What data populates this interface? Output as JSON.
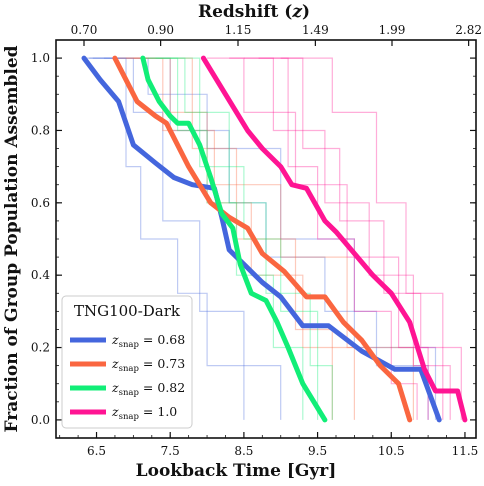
{
  "chart_data": {
    "type": "line",
    "xlabel": "Lookback Time [Gyr]",
    "ylabel": "Fraction of Group Population Assembled",
    "top_axis_label": "Redshift (z)",
    "xlim": [
      5.95,
      11.65
    ],
    "ylim": [
      -0.05,
      1.05
    ],
    "x_ticks": [
      "6.5",
      "7.5",
      "8.5",
      "9.5",
      "10.5",
      "11.5"
    ],
    "y_ticks": [
      "0.0",
      "0.2",
      "0.4",
      "0.6",
      "0.8",
      "1.0"
    ],
    "top_ticks": [
      {
        "label": "0.70",
        "at": 6.33
      },
      {
        "label": "0.90",
        "at": 7.37
      },
      {
        "label": "1.15",
        "at": 8.42
      },
      {
        "label": "1.49",
        "at": 9.47
      },
      {
        "label": "1.99",
        "at": 10.51
      },
      {
        "label": "2.82",
        "at": 11.55
      }
    ],
    "legend": {
      "title": "TNG100-Dark",
      "position": "lower-left",
      "entries": [
        {
          "prefix": "z",
          "sub": "snap",
          "value": " = 0.68"
        },
        {
          "prefix": "z",
          "sub": "snap",
          "value": " = 0.73"
        },
        {
          "prefix": "z",
          "sub": "snap",
          "value": " = 0.82"
        },
        {
          "prefix": "z",
          "sub": "snap",
          "value": " = 1.0"
        }
      ]
    },
    "series": [
      {
        "color": "#4466dd",
        "x": [
          6.33,
          6.55,
          6.8,
          7.0,
          7.3,
          7.55,
          7.8,
          8.1,
          8.2,
          8.3,
          8.55,
          8.75,
          9.0,
          9.3,
          9.65,
          10.1,
          10.55,
          10.9,
          11.15
        ],
        "y": [
          1.0,
          0.94,
          0.88,
          0.76,
          0.71,
          0.67,
          0.65,
          0.64,
          0.56,
          0.47,
          0.42,
          0.38,
          0.34,
          0.26,
          0.26,
          0.19,
          0.14,
          0.14,
          0.0
        ],
        "members": [
          {
            "x": [
              6.35,
              7.0,
              7.4,
              7.9,
              8.5
            ],
            "y": [
              1.0,
              0.85,
              0.55,
              0.3,
              0.0
            ]
          },
          {
            "x": [
              6.45,
              6.9,
              7.1,
              7.6,
              8.0,
              9.0
            ],
            "y": [
              1.0,
              0.7,
              0.5,
              0.35,
              0.15,
              0.0
            ]
          },
          {
            "x": [
              6.6,
              7.5,
              8.3,
              8.8,
              9.6,
              10.3,
              11.0
            ],
            "y": [
              1.0,
              0.8,
              0.6,
              0.45,
              0.3,
              0.15,
              0.0
            ]
          },
          {
            "x": [
              6.4,
              7.2,
              8.0,
              9.0,
              10.0,
              11.1
            ],
            "y": [
              1.0,
              0.9,
              0.75,
              0.5,
              0.2,
              0.0
            ]
          }
        ]
      },
      {
        "color": "#fa6640",
        "x": [
          6.75,
          7.05,
          7.3,
          7.45,
          7.75,
          8.05,
          8.3,
          8.55,
          8.75,
          9.05,
          9.35,
          9.6,
          9.85,
          10.1,
          10.35,
          10.6,
          10.75
        ],
        "y": [
          1.0,
          0.88,
          0.84,
          0.82,
          0.7,
          0.6,
          0.56,
          0.53,
          0.46,
          0.41,
          0.34,
          0.34,
          0.27,
          0.22,
          0.15,
          0.1,
          0.0
        ],
        "members": [
          {
            "x": [
              6.8,
              7.5,
              8.0,
              8.6,
              9.3,
              10.0
            ],
            "y": [
              1.0,
              0.85,
              0.6,
              0.4,
              0.2,
              0.0
            ]
          },
          {
            "x": [
              6.9,
              7.4,
              8.1,
              9.0,
              9.9,
              10.8
            ],
            "y": [
              1.0,
              0.8,
              0.65,
              0.45,
              0.2,
              0.0
            ]
          },
          {
            "x": [
              7.0,
              7.8,
              8.4,
              9.2,
              9.7
            ],
            "y": [
              1.0,
              0.75,
              0.5,
              0.25,
              0.0
            ]
          }
        ]
      },
      {
        "color": "#11ee77",
        "x": [
          7.13,
          7.2,
          7.35,
          7.5,
          7.6,
          7.75,
          7.9,
          8.05,
          8.2,
          8.35,
          8.45,
          8.6,
          8.8,
          8.95,
          9.1,
          9.3,
          9.6
        ],
        "y": [
          1.0,
          0.94,
          0.88,
          0.84,
          0.82,
          0.82,
          0.76,
          0.67,
          0.57,
          0.53,
          0.43,
          0.35,
          0.33,
          0.27,
          0.2,
          0.1,
          0.0
        ],
        "members": [
          {
            "x": [
              7.15,
              7.6,
              8.0,
              8.4,
              8.9,
              9.3
            ],
            "y": [
              1.0,
              0.8,
              0.6,
              0.4,
              0.2,
              0.0
            ]
          },
          {
            "x": [
              7.2,
              7.7,
              8.3,
              8.8,
              9.4,
              9.7
            ],
            "y": [
              1.0,
              0.85,
              0.6,
              0.35,
              0.15,
              0.0
            ]
          },
          {
            "x": [
              7.3,
              7.9,
              8.5,
              9.0,
              9.5
            ],
            "y": [
              1.0,
              0.7,
              0.5,
              0.3,
              0.0
            ]
          }
        ]
      },
      {
        "color": "#ff1493",
        "x": [
          7.95,
          8.25,
          8.55,
          8.75,
          9.0,
          9.15,
          9.35,
          9.6,
          9.75,
          10.0,
          10.25,
          10.5,
          10.75,
          10.95,
          11.1,
          11.4,
          11.5
        ],
        "y": [
          1.0,
          0.9,
          0.8,
          0.75,
          0.7,
          0.65,
          0.64,
          0.55,
          0.52,
          0.46,
          0.4,
          0.35,
          0.27,
          0.14,
          0.08,
          0.08,
          0.0
        ],
        "members": [
          {
            "x": [
              8.0,
              8.5,
              9.2,
              9.9,
              10.6,
              11.0
            ],
            "y": [
              1.0,
              0.85,
              0.65,
              0.45,
              0.2,
              0.0
            ]
          },
          {
            "x": [
              8.3,
              8.9,
              9.6,
              10.2,
              10.8,
              11.3
            ],
            "y": [
              1.0,
              0.8,
              0.6,
              0.4,
              0.15,
              0.0
            ]
          },
          {
            "x": [
              8.7,
              9.3,
              9.8,
              10.4,
              10.9,
              11.45
            ],
            "y": [
              1.0,
              0.75,
              0.55,
              0.35,
              0.2,
              0.0
            ]
          },
          {
            "x": [
              9.0,
              9.7,
              10.3,
              10.7,
              11.2
            ],
            "y": [
              1.0,
              0.85,
              0.6,
              0.35,
              0.0
            ]
          },
          {
            "x": [
              8.5,
              9.1,
              9.5,
              10.0,
              10.5,
              10.85
            ],
            "y": [
              1.0,
              0.7,
              0.5,
              0.3,
              0.1,
              0.0
            ]
          }
        ]
      }
    ]
  }
}
